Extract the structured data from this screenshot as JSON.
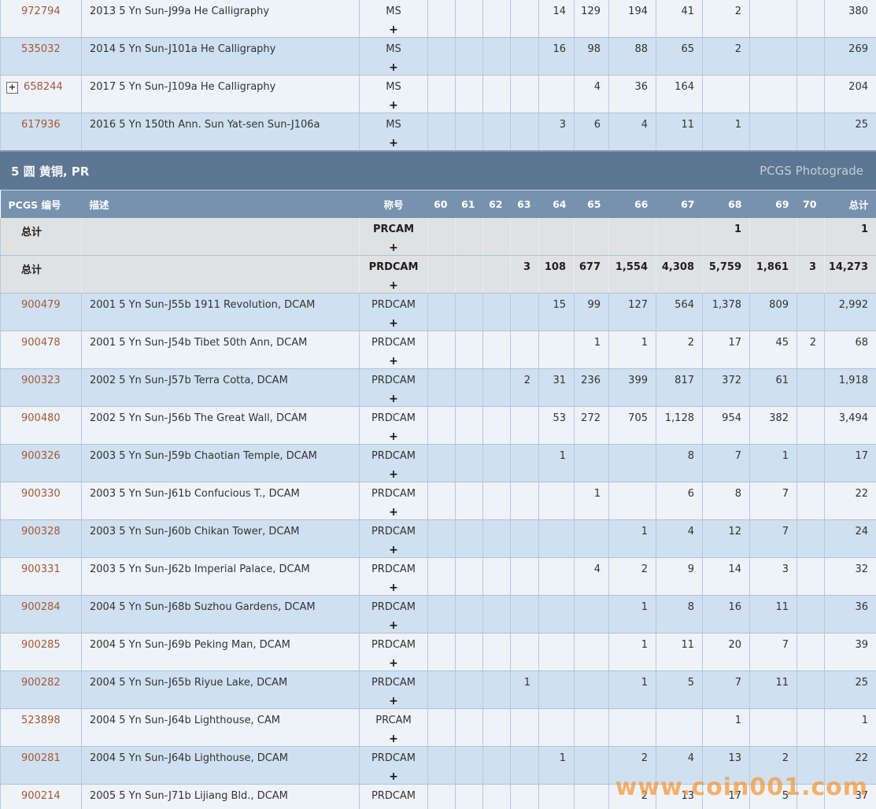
{
  "section": {
    "title": "5 圆 黄铜, PR",
    "photograde_label": "PCGS Photograde"
  },
  "columns": {
    "pcgs_no": "PCGS 编号",
    "description": "描述",
    "designation": "称号",
    "grades": [
      "60",
      "61",
      "62",
      "63",
      "64",
      "65",
      "66",
      "67",
      "68",
      "69",
      "70"
    ],
    "total": "总计"
  },
  "top_table_rows": [
    {
      "id": "972794",
      "expand": false,
      "is_total": false,
      "shade": "light",
      "desc": "2013 5 Yn Sun-J99a He Calligraphy",
      "designation": "MS",
      "plus": "+",
      "grades": [
        "",
        "",
        "",
        "",
        "14",
        "129",
        "194",
        "41",
        "2",
        "",
        ""
      ],
      "total": "380"
    },
    {
      "id": "535032",
      "expand": false,
      "is_total": false,
      "shade": "blue",
      "desc": "2014 5 Yn Sun-J101a He Calligraphy",
      "designation": "MS",
      "plus": "+",
      "grades": [
        "",
        "",
        "",
        "",
        "16",
        "98",
        "88",
        "65",
        "2",
        "",
        ""
      ],
      "total": "269"
    },
    {
      "id": "658244",
      "expand": true,
      "is_total": false,
      "shade": "light",
      "desc": "2017 5 Yn Sun-J109a He Calligraphy",
      "designation": "MS",
      "plus": "+",
      "grades": [
        "",
        "",
        "",
        "",
        "",
        "4",
        "36",
        "164",
        "",
        "",
        ""
      ],
      "total": "204"
    },
    {
      "id": "617936",
      "expand": false,
      "is_total": false,
      "shade": "blue",
      "desc": "2016 5 Yn 150th Ann. Sun Yat-sen Sun-J106a",
      "designation": "MS",
      "plus": "+",
      "grades": [
        "",
        "",
        "",
        "",
        "3",
        "6",
        "4",
        "11",
        "1",
        "",
        ""
      ],
      "total": "25"
    }
  ],
  "pr_table_rows": [
    {
      "id": "总计",
      "expand": false,
      "is_total": true,
      "shade": "gray",
      "desc": "",
      "designation": "PRCAM",
      "plus": "+",
      "grades": [
        "",
        "",
        "",
        "",
        "",
        "",
        "",
        "",
        "1",
        "",
        ""
      ],
      "total": "1"
    },
    {
      "id": "总计",
      "expand": false,
      "is_total": true,
      "shade": "gray",
      "desc": "",
      "designation": "PRDCAM",
      "plus": "+",
      "grades": [
        "",
        "",
        "",
        "3",
        "108",
        "677",
        "1,554",
        "4,308",
        "5,759",
        "1,861",
        "3"
      ],
      "total": "14,273"
    },
    {
      "id": "900479",
      "expand": false,
      "is_total": false,
      "shade": "blue",
      "desc": "2001 5 Yn Sun-J55b 1911 Revolution, DCAM",
      "designation": "PRDCAM",
      "plus": "+",
      "grades": [
        "",
        "",
        "",
        "",
        "15",
        "99",
        "127",
        "564",
        "1,378",
        "809",
        ""
      ],
      "total": "2,992"
    },
    {
      "id": "900478",
      "expand": false,
      "is_total": false,
      "shade": "light",
      "desc": "2001 5 Yn Sun-J54b Tibet 50th Ann, DCAM",
      "designation": "PRDCAM",
      "plus": "+",
      "grades": [
        "",
        "",
        "",
        "",
        "",
        "1",
        "1",
        "2",
        "17",
        "45",
        "2"
      ],
      "total": "68"
    },
    {
      "id": "900323",
      "expand": false,
      "is_total": false,
      "shade": "blue",
      "desc": "2002 5 Yn Sun-J57b Terra Cotta, DCAM",
      "designation": "PRDCAM",
      "plus": "+",
      "grades": [
        "",
        "",
        "",
        "2",
        "31",
        "236",
        "399",
        "817",
        "372",
        "61",
        ""
      ],
      "total": "1,918"
    },
    {
      "id": "900480",
      "expand": false,
      "is_total": false,
      "shade": "light",
      "desc": "2002 5 Yn Sun-J56b The Great Wall, DCAM",
      "designation": "PRDCAM",
      "plus": "+",
      "grades": [
        "",
        "",
        "",
        "",
        "53",
        "272",
        "705",
        "1,128",
        "954",
        "382",
        ""
      ],
      "total": "3,494"
    },
    {
      "id": "900326",
      "expand": false,
      "is_total": false,
      "shade": "blue",
      "desc": "2003 5 Yn Sun-J59b Chaotian Temple, DCAM",
      "designation": "PRDCAM",
      "plus": "+",
      "grades": [
        "",
        "",
        "",
        "",
        "1",
        "",
        "",
        "8",
        "7",
        "1",
        ""
      ],
      "total": "17"
    },
    {
      "id": "900330",
      "expand": false,
      "is_total": false,
      "shade": "light",
      "desc": "2003 5 Yn Sun-J61b Confucious T., DCAM",
      "designation": "PRDCAM",
      "plus": "+",
      "grades": [
        "",
        "",
        "",
        "",
        "",
        "1",
        "",
        "6",
        "8",
        "7",
        ""
      ],
      "total": "22"
    },
    {
      "id": "900328",
      "expand": false,
      "is_total": false,
      "shade": "blue",
      "desc": "2003 5 Yn Sun-J60b Chikan Tower, DCAM",
      "designation": "PRDCAM",
      "plus": "+",
      "grades": [
        "",
        "",
        "",
        "",
        "",
        "",
        "1",
        "4",
        "12",
        "7",
        ""
      ],
      "total": "24"
    },
    {
      "id": "900331",
      "expand": false,
      "is_total": false,
      "shade": "light",
      "desc": "2003 5 Yn Sun-J62b Imperial Palace, DCAM",
      "designation": "PRDCAM",
      "plus": "+",
      "grades": [
        "",
        "",
        "",
        "",
        "",
        "4",
        "2",
        "9",
        "14",
        "3",
        ""
      ],
      "total": "32"
    },
    {
      "id": "900284",
      "expand": false,
      "is_total": false,
      "shade": "blue",
      "desc": "2004 5 Yn Sun-J68b Suzhou Gardens, DCAM",
      "designation": "PRDCAM",
      "plus": "+",
      "grades": [
        "",
        "",
        "",
        "",
        "",
        "",
        "1",
        "8",
        "16",
        "11",
        ""
      ],
      "total": "36"
    },
    {
      "id": "900285",
      "expand": false,
      "is_total": false,
      "shade": "light",
      "desc": "2004 5 Yn Sun-J69b Peking Man, DCAM",
      "designation": "PRDCAM",
      "plus": "+",
      "grades": [
        "",
        "",
        "",
        "",
        "",
        "",
        "1",
        "11",
        "20",
        "7",
        ""
      ],
      "total": "39"
    },
    {
      "id": "900282",
      "expand": false,
      "is_total": false,
      "shade": "blue",
      "desc": "2004 5 Yn Sun-J65b Riyue Lake, DCAM",
      "designation": "PRDCAM",
      "plus": "+",
      "grades": [
        "",
        "",
        "",
        "1",
        "",
        "",
        "1",
        "5",
        "7",
        "11",
        ""
      ],
      "total": "25"
    },
    {
      "id": "523898",
      "expand": false,
      "is_total": false,
      "shade": "light",
      "desc": "2004 5 Yn Sun-J64b Lighthouse, CAM",
      "designation": "PRCAM",
      "plus": "+",
      "grades": [
        "",
        "",
        "",
        "",
        "",
        "",
        "",
        "",
        "1",
        "",
        ""
      ],
      "total": "1"
    },
    {
      "id": "900281",
      "expand": false,
      "is_total": false,
      "shade": "blue",
      "desc": "2004 5 Yn Sun-J64b Lighthouse, DCAM",
      "designation": "PRDCAM",
      "plus": "+",
      "grades": [
        "",
        "",
        "",
        "",
        "1",
        "",
        "2",
        "4",
        "13",
        "2",
        ""
      ],
      "total": "22"
    },
    {
      "id": "900214",
      "expand": false,
      "is_total": false,
      "shade": "light",
      "desc": "2005 5 Yn Sun-J71b Lijiang Bld., DCAM",
      "designation": "PRDCAM",
      "plus": "+",
      "grades": [
        "",
        "",
        "",
        "",
        "",
        "",
        "2",
        "13",
        "17",
        "5",
        ""
      ],
      "total": "37"
    }
  ],
  "watermark": "www.coin001.com",
  "colors": {
    "section_header_bg": "#5d7691",
    "column_header_bg": "#7792ae",
    "row_blue": "#cfe0f1",
    "row_light": "#eef3f9",
    "row_total_gray": "#e0e1e3",
    "pcgs_link": "#a85732",
    "watermark_orange": "#f79630",
    "grid_border": "#b7c9da"
  }
}
